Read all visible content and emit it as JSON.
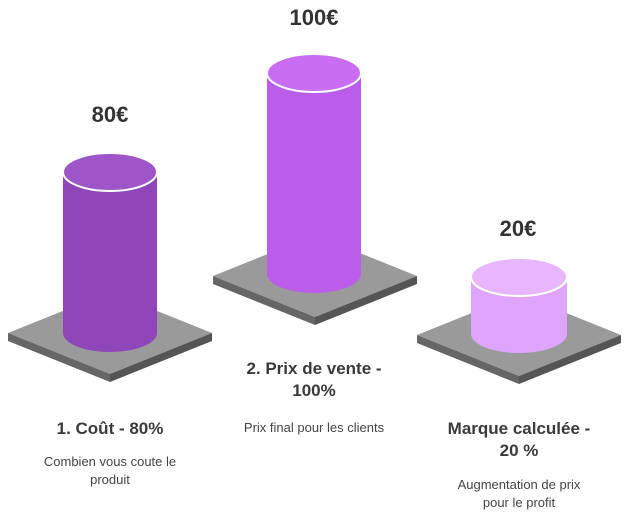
{
  "chart_data": {
    "type": "bar",
    "categories": [
      "1. Coût - 80%",
      "2. Prix de vente - 100%",
      "Marque calculée - 20 %"
    ],
    "values": [
      80,
      100,
      20
    ],
    "value_labels": [
      "80€",
      "100€",
      "20€"
    ],
    "descriptions": [
      "Combien vous coute le produit",
      "Prix final pour les clients",
      "Augmentation de prix pour le profit"
    ],
    "colors": [
      "#8e46b8",
      "#bb5ceb",
      "#dfa4fb"
    ]
  },
  "items": [
    {
      "value": "80€",
      "title": "1. Coût - 80%",
      "desc_lines": [
        "Combien vous coute le",
        "produit"
      ]
    },
    {
      "value": "100€",
      "title_lines": [
        "2. Prix de vente -",
        "100%"
      ],
      "desc": "Prix final pour les clients"
    },
    {
      "value": "20€",
      "title_lines": [
        "Marque calculée -",
        "20 %"
      ],
      "desc_lines": [
        "Augmentation de prix",
        "pour le profit"
      ]
    }
  ]
}
